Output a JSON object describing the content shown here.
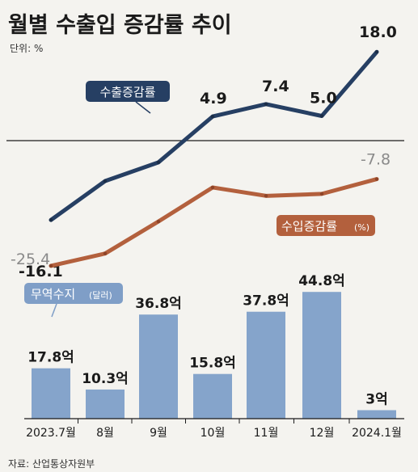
{
  "title": "월별 수출입 증감률 추이",
  "unit": "단위: %",
  "source": "자료: 산업통상자원부",
  "colors": {
    "export": "#263f63",
    "import": "#b3603d",
    "bar": "#85a4cb",
    "trade_tag": "#7f9ec7"
  },
  "chart_data": [
    {
      "type": "line",
      "categories": [
        "2023.7월",
        "8월",
        "9월",
        "10월",
        "11월",
        "12월",
        "2024.1월"
      ],
      "series": [
        {
          "name": "수출증감률",
          "values": [
            -16.1,
            -8.2,
            -4.4,
            4.9,
            7.4,
            5.0,
            18.0
          ],
          "labels": {
            "0": "-16.1",
            "3": "4.9",
            "4": "7.4",
            "5": "5.0",
            "6": "18.0"
          }
        },
        {
          "name": "수입증감률",
          "unit_label": "(%)",
          "values": [
            -25.4,
            -22.9,
            -16.4,
            -9.5,
            -11.2,
            -10.8,
            -7.8
          ],
          "labels": {
            "0": "-25.4",
            "6": "-7.8"
          }
        }
      ],
      "ylim": [
        -30,
        22
      ],
      "reference_line": 0
    },
    {
      "type": "bar",
      "name": "무역수지",
      "unit_label": "(달러)",
      "categories": [
        "2023.7월",
        "8월",
        "9월",
        "10월",
        "11월",
        "12월",
        "2024.1월"
      ],
      "values": [
        17.8,
        10.3,
        36.8,
        15.8,
        37.8,
        44.8,
        3
      ],
      "value_labels": [
        "17.8억",
        "10.3억",
        "36.8억",
        "15.8억",
        "37.8억",
        "44.8억",
        "3억"
      ],
      "ylim": [
        0,
        50
      ]
    }
  ]
}
